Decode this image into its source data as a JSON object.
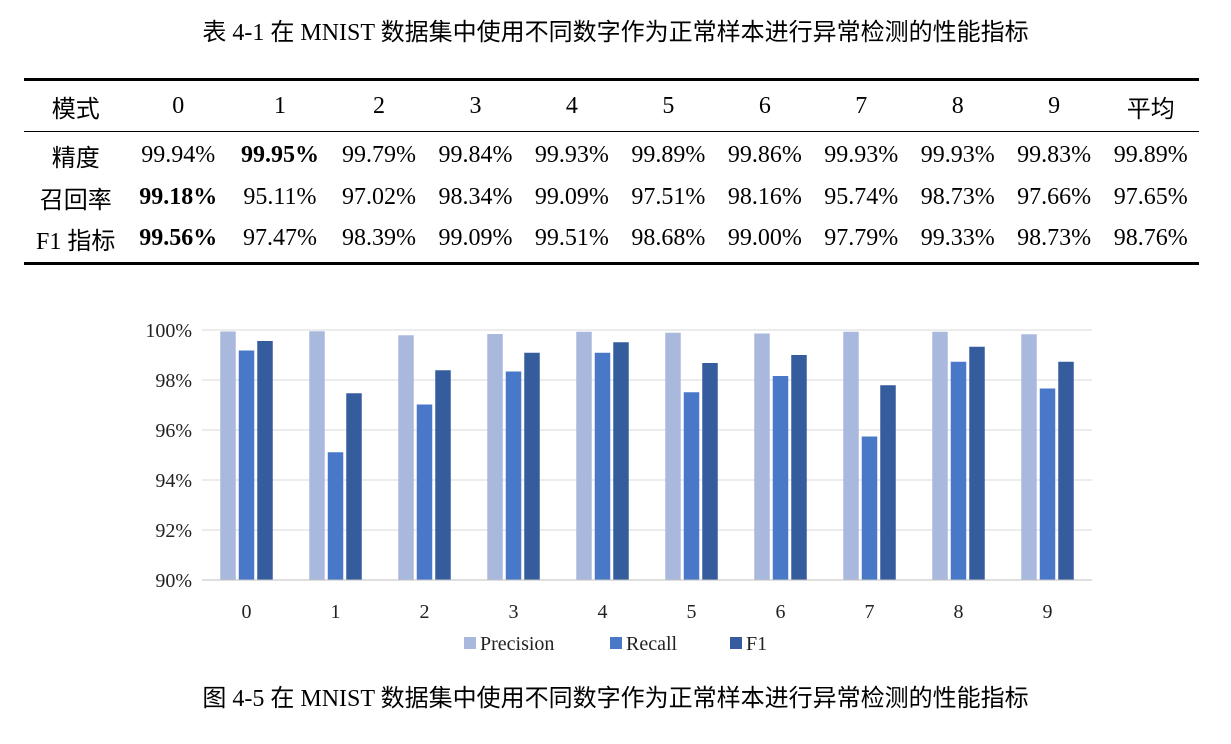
{
  "table": {
    "caption": "表 4-1 在 MNIST 数据集中使用不同数字作为正常样本进行异常检测的性能指标",
    "headers": [
      "模式",
      "0",
      "1",
      "2",
      "3",
      "4",
      "5",
      "6",
      "7",
      "8",
      "9",
      "平均"
    ],
    "rows": [
      {
        "label": "精度",
        "cells": [
          "99.94%",
          "99.95%",
          "99.79%",
          "99.84%",
          "99.93%",
          "99.89%",
          "99.86%",
          "99.93%",
          "99.93%",
          "99.83%",
          "99.89%"
        ],
        "bold_index": 1
      },
      {
        "label": "召回率",
        "cells": [
          "99.18%",
          "95.11%",
          "97.02%",
          "98.34%",
          "99.09%",
          "97.51%",
          "98.16%",
          "95.74%",
          "98.73%",
          "97.66%",
          "97.65%"
        ],
        "bold_index": 0
      },
      {
        "label": "F1 指标",
        "cells": [
          "99.56%",
          "97.47%",
          "98.39%",
          "99.09%",
          "99.51%",
          "98.68%",
          "99.00%",
          "97.79%",
          "99.33%",
          "98.73%",
          "98.76%"
        ],
        "bold_index": 0
      }
    ]
  },
  "chart_data": {
    "type": "bar",
    "categories": [
      "0",
      "1",
      "2",
      "3",
      "4",
      "5",
      "6",
      "7",
      "8",
      "9"
    ],
    "series": [
      {
        "name": "Precision",
        "color": "#a9b8dd",
        "values": [
          99.94,
          99.95,
          99.79,
          99.84,
          99.93,
          99.89,
          99.86,
          99.93,
          99.93,
          99.83
        ]
      },
      {
        "name": "Recall",
        "color": "#4a78c8",
        "values": [
          99.18,
          95.11,
          97.02,
          98.34,
          99.09,
          97.51,
          98.16,
          95.74,
          98.73,
          97.66
        ]
      },
      {
        "name": "F1",
        "color": "#355c9c",
        "values": [
          99.56,
          97.47,
          98.39,
          99.09,
          99.51,
          98.68,
          99.0,
          97.79,
          99.33,
          98.73
        ]
      }
    ],
    "ylim": [
      90,
      100
    ],
    "yticks": [
      "90%",
      "92%",
      "94%",
      "96%",
      "98%",
      "100%"
    ],
    "grid": true,
    "legend": "bottom"
  },
  "figure_caption": "图 4-5 在 MNIST 数据集中使用不同数字作为正常样本进行异常检测的性能指标"
}
